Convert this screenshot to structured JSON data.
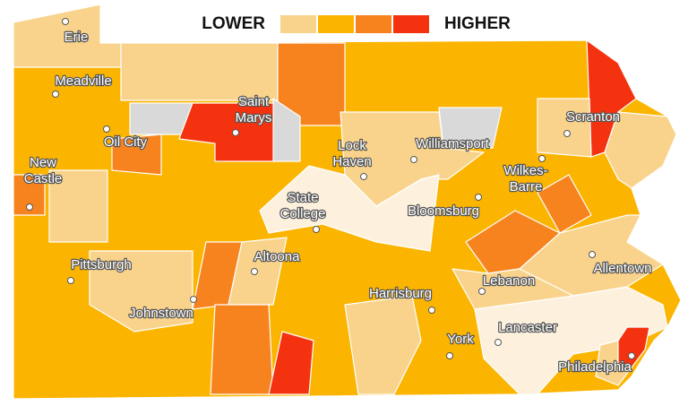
{
  "legend": {
    "low_label": "LOWER",
    "high_label": "HIGHER",
    "colors": [
      "#f9d38b",
      "#fbb400",
      "#f7831e",
      "#f4320f"
    ]
  },
  "cities": [
    {
      "label": [
        "Erie"
      ]
    },
    {
      "label": [
        "Meadville"
      ]
    },
    {
      "label": [
        "Saint",
        "Marys"
      ]
    },
    {
      "label": [
        "Oil City"
      ]
    },
    {
      "label": [
        "New",
        "Castle"
      ]
    },
    {
      "label": [
        "Lock",
        "Haven"
      ]
    },
    {
      "label": [
        "Williamsport"
      ]
    },
    {
      "label": [
        "Scranton"
      ]
    },
    {
      "label": [
        "Wilkes-",
        "Barre"
      ]
    },
    {
      "label": [
        "State",
        "College"
      ]
    },
    {
      "label": [
        "Bloomsburg"
      ]
    },
    {
      "label": [
        "Pittsburgh"
      ]
    },
    {
      "label": [
        "Altoona"
      ]
    },
    {
      "label": [
        "Allentown"
      ]
    },
    {
      "label": [
        "Lebanon"
      ]
    },
    {
      "label": [
        "Johnstown"
      ]
    },
    {
      "label": [
        "Harrisburg"
      ]
    },
    {
      "label": [
        "Lancaster"
      ]
    },
    {
      "label": [
        "York"
      ]
    },
    {
      "label": [
        "Philadelphia"
      ]
    }
  ]
}
